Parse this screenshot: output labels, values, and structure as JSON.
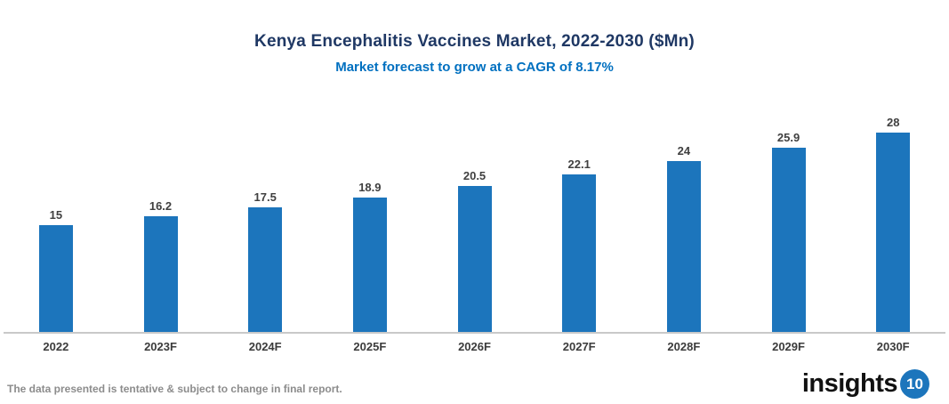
{
  "chart_data": {
    "type": "bar",
    "title": "Kenya Encephalitis Vaccines Market, 2022-2030 ($Mn)",
    "subtitle": "Market forecast to grow at a CAGR of 8.17%",
    "categories": [
      "2022",
      "2023F",
      "2024F",
      "2025F",
      "2026F",
      "2027F",
      "2028F",
      "2029F",
      "2030F"
    ],
    "values": [
      15,
      16.2,
      17.5,
      18.9,
      20.5,
      22.1,
      24,
      25.9,
      28
    ],
    "value_labels": [
      "15",
      "16.2",
      "17.5",
      "18.9",
      "20.5",
      "22.1",
      "24",
      "25.9",
      "28"
    ],
    "xlabel": "",
    "ylabel": "",
    "ylim": [
      0,
      30
    ],
    "grid": false,
    "legend": false,
    "bar_color": "#1C75BC"
  },
  "colors": {
    "title": "#1F3864",
    "subtitle": "#0070C0",
    "bar": "#1C75BC",
    "axis_line": "#C9C9C9",
    "data_label": "#404040",
    "footer_text": "#8C8C8C",
    "logo_badge": "#1C75BC"
  },
  "footer": {
    "disclaimer": "The data presented is tentative & subject to change in final report.",
    "logo_text": "insights",
    "logo_badge_text": "10"
  }
}
